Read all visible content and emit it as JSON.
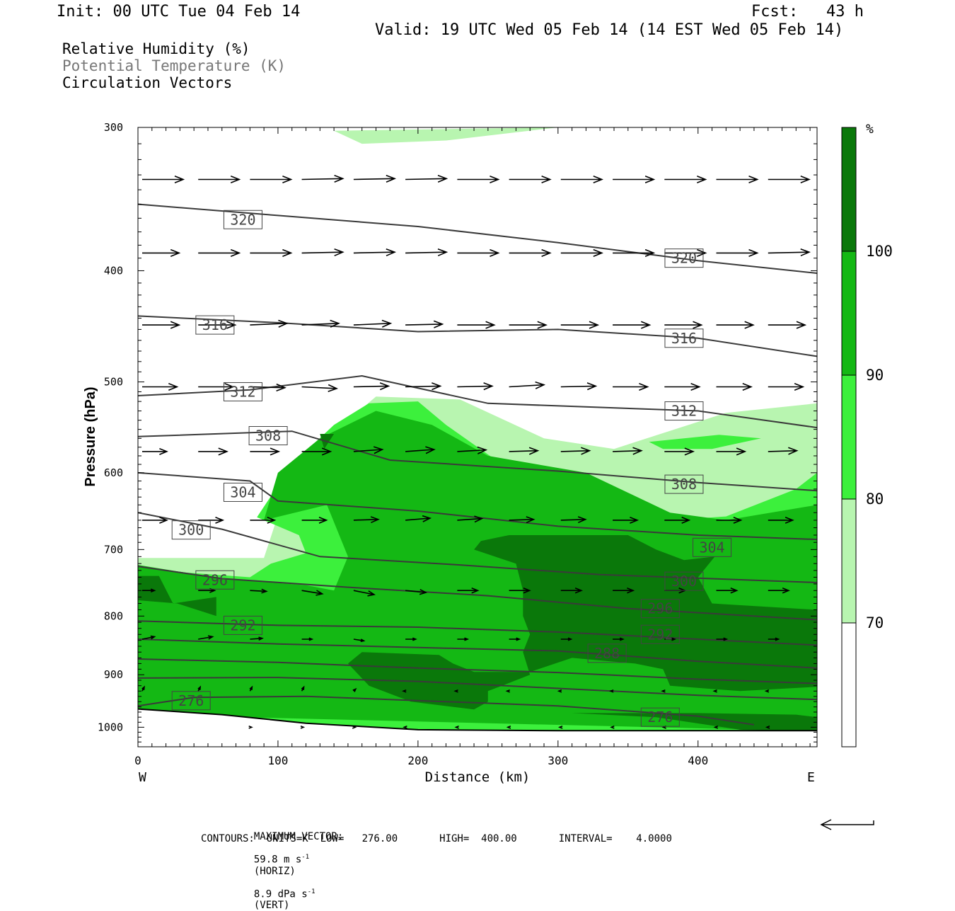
{
  "header": {
    "init": "Init: 00 UTC Tue 04 Feb 14",
    "fcst": "Fcst:   43 h",
    "valid": "Valid: 19 UTC Wed 05 Feb 14 (14 EST Wed 05 Feb 14)"
  },
  "fields": {
    "rh": "Relative Humidity (%)",
    "theta": "Potential Temperature (K)",
    "vectors": "Circulation Vectors"
  },
  "colors": {
    "rh_70_80": "#b8f5b0",
    "rh_80_90": "#3cf03c",
    "rh_90_100": "#14b814",
    "rh_100": "#0a780a",
    "contour": "#3a3a3a",
    "ground": "#ffffff"
  },
  "chart_data": {
    "type": "cross-section",
    "xlabel": "Distance (km)",
    "ylabel": "Pressure (hPa)",
    "xlim": [
      0,
      485
    ],
    "ylim": [
      1040,
      300
    ],
    "y_scale": "log",
    "x_ticks": [
      "0",
      "100",
      "200",
      "300",
      "400"
    ],
    "y_ticks": [
      "300",
      "400",
      "500",
      "600",
      "700",
      "800",
      "900",
      "1000"
    ],
    "x_endpoints": {
      "west": "W",
      "east": "E"
    },
    "colorbar": {
      "unit": "%",
      "levels": [
        "70",
        "80",
        "90",
        "100"
      ],
      "bands": [
        {
          "range": [
            60,
            70
          ],
          "color": "#ffffff"
        },
        {
          "range": [
            70,
            80
          ],
          "color": "#b8f5b0"
        },
        {
          "range": [
            80,
            90
          ],
          "color": "#3cf03c"
        },
        {
          "range": [
            90,
            100
          ],
          "color": "#14b814"
        },
        {
          "range": [
            100,
            110
          ],
          "color": "#0a780a"
        }
      ]
    },
    "theta_contours": [
      {
        "value": 320,
        "points": [
          [
            0,
            350
          ],
          [
            100,
            358
          ],
          [
            200,
            366
          ],
          [
            300,
            378
          ],
          [
            400,
            392
          ],
          [
            485,
            402
          ]
        ]
      },
      {
        "value": 316,
        "points": [
          [
            0,
            438
          ],
          [
            100,
            444
          ],
          [
            200,
            452
          ],
          [
            300,
            450
          ],
          [
            400,
            458
          ],
          [
            485,
            475
          ]
        ]
      },
      {
        "value": 312,
        "points": [
          [
            0,
            514
          ],
          [
            80,
            508
          ],
          [
            160,
            494
          ],
          [
            250,
            522
          ],
          [
            400,
            530
          ],
          [
            485,
            548
          ]
        ]
      },
      {
        "value": 308,
        "points": [
          [
            0,
            558
          ],
          [
            110,
            552
          ],
          [
            180,
            585
          ],
          [
            300,
            598
          ],
          [
            400,
            612
          ],
          [
            485,
            622
          ]
        ]
      },
      {
        "value": 304,
        "points": [
          [
            0,
            600
          ],
          [
            80,
            610
          ],
          [
            100,
            635
          ],
          [
            200,
            648
          ],
          [
            300,
            668
          ],
          [
            400,
            680
          ],
          [
            485,
            686
          ]
        ]
      },
      {
        "value": 300,
        "points": [
          [
            0,
            650
          ],
          [
            60,
            672
          ],
          [
            130,
            710
          ],
          [
            230,
            722
          ],
          [
            330,
            736
          ],
          [
            485,
            748
          ]
        ]
      },
      {
        "value": 296,
        "points": [
          [
            0,
            724
          ],
          [
            60,
            742
          ],
          [
            150,
            755
          ],
          [
            250,
            768
          ],
          [
            350,
            788
          ],
          [
            485,
            806
          ]
        ]
      },
      {
        "value": 292,
        "points": [
          [
            0,
            808
          ],
          [
            100,
            815
          ],
          [
            200,
            818
          ],
          [
            300,
            826
          ],
          [
            400,
            838
          ],
          [
            485,
            848
          ]
        ]
      },
      {
        "value": 288,
        "points": [
          [
            0,
            838
          ],
          [
            100,
            846
          ],
          [
            200,
            852
          ],
          [
            300,
            858
          ],
          [
            400,
            876
          ],
          [
            485,
            888
          ]
        ]
      },
      {
        "value": 284,
        "points": [
          [
            0,
            872
          ],
          [
            100,
            878
          ],
          [
            200,
            888
          ],
          [
            300,
            896
          ],
          [
            400,
            908
          ],
          [
            485,
            916
          ]
        ]
      },
      {
        "value": 280,
        "points": [
          [
            0,
            906
          ],
          [
            100,
            905
          ],
          [
            200,
            912
          ],
          [
            300,
            925
          ],
          [
            400,
            938
          ],
          [
            485,
            946
          ]
        ]
      },
      {
        "value": 276,
        "points": [
          [
            0,
            958
          ],
          [
            40,
            942
          ],
          [
            120,
            940
          ],
          [
            300,
            958
          ],
          [
            400,
            978
          ],
          [
            440,
            995
          ]
        ]
      }
    ],
    "theta_labels": [
      {
        "text": "320",
        "x": 75,
        "p": 361
      },
      {
        "text": "320",
        "x": 390,
        "p": 390
      },
      {
        "text": "316",
        "x": 55,
        "p": 446
      },
      {
        "text": "316",
        "x": 390,
        "p": 458
      },
      {
        "text": "312",
        "x": 75,
        "p": 510
      },
      {
        "text": "312",
        "x": 390,
        "p": 530
      },
      {
        "text": "308",
        "x": 93,
        "p": 557
      },
      {
        "text": "308",
        "x": 390,
        "p": 614
      },
      {
        "text": "304",
        "x": 75,
        "p": 624
      },
      {
        "text": "304",
        "x": 410,
        "p": 697
      },
      {
        "text": "300",
        "x": 38,
        "p": 673
      },
      {
        "text": "300",
        "x": 390,
        "p": 746
      },
      {
        "text": "296",
        "x": 55,
        "p": 744
      },
      {
        "text": "296",
        "x": 373,
        "p": 788
      },
      {
        "text": "292",
        "x": 75,
        "p": 815
      },
      {
        "text": "292",
        "x": 373,
        "p": 830
      },
      {
        "text": "288",
        "x": 335,
        "p": 862
      },
      {
        "text": "276",
        "x": 38,
        "p": 948
      },
      {
        "text": "276",
        "x": 373,
        "p": 980
      }
    ],
    "vectors": [
      {
        "p": 333,
        "x": [
          0,
          40,
          77,
          114,
          151,
          188,
          225,
          262,
          299,
          336,
          373,
          410,
          447
        ],
        "u": [
          1.0,
          1.0,
          1.0,
          1.0,
          1.0,
          1.0,
          1.0,
          1.0,
          1.0,
          1.0,
          1.0,
          1.0,
          1.0
        ],
        "w": [
          0,
          0,
          0,
          0.02,
          0.02,
          0.02,
          0,
          0,
          0,
          0,
          0,
          0,
          0
        ]
      },
      {
        "p": 386,
        "x": [
          0,
          40,
          77,
          114,
          151,
          188,
          225,
          262,
          299,
          336,
          373,
          410,
          447
        ],
        "u": [
          0.9,
          1.0,
          1.0,
          1.0,
          1.0,
          1.0,
          1.0,
          1.0,
          1.0,
          1.0,
          1.0,
          1.0,
          1.0
        ],
        "w": [
          0,
          0,
          0,
          0.02,
          0.02,
          0.02,
          0,
          0,
          0,
          0,
          0,
          0,
          0.02
        ]
      },
      {
        "p": 446,
        "x": [
          0,
          40,
          77,
          114,
          151,
          188,
          225,
          262,
          299,
          336,
          373,
          410,
          447
        ],
        "u": [
          0.9,
          0.9,
          0.9,
          0.9,
          0.9,
          0.9,
          0.9,
          0.9,
          0.9,
          0.9,
          0.9,
          0.9,
          0.9
        ],
        "w": [
          0,
          0,
          0.04,
          0.04,
          0.04,
          0.02,
          0,
          0,
          0,
          0,
          0,
          0,
          0
        ]
      },
      {
        "p": 505,
        "x": [
          0,
          40,
          77,
          114,
          151,
          188,
          225,
          262,
          299,
          336,
          373,
          410,
          447
        ],
        "u": [
          0.85,
          0.85,
          0.85,
          0.85,
          0.85,
          0.85,
          0.85,
          0.85,
          0.85,
          0.85,
          0.85,
          0.85,
          0.85
        ],
        "w": [
          0,
          0,
          -0.02,
          -0.04,
          0.02,
          0.02,
          0.02,
          0.05,
          0.02,
          0,
          0,
          0,
          0
        ]
      },
      {
        "p": 575,
        "x": [
          0,
          40,
          77,
          114,
          151,
          188,
          225,
          262,
          299,
          336,
          373,
          410,
          447
        ],
        "u": [
          0.6,
          0.7,
          0.7,
          0.7,
          0.7,
          0.7,
          0.7,
          0.7,
          0.7,
          0.7,
          0.7,
          0.7,
          0.7
        ],
        "w": [
          0,
          0,
          0,
          0,
          0.05,
          0.05,
          0.04,
          0.02,
          0.02,
          0.02,
          0,
          0,
          0.02
        ]
      },
      {
        "p": 660,
        "x": [
          0,
          40,
          77,
          114,
          151,
          188,
          225,
          262,
          299,
          336,
          373,
          410,
          447
        ],
        "u": [
          0.6,
          0.6,
          0.6,
          0.6,
          0.6,
          0.6,
          0.6,
          0.6,
          0.6,
          0.6,
          0.6,
          0.6,
          0.6
        ],
        "w": [
          0,
          0,
          0,
          0,
          0.02,
          0.05,
          0.04,
          0.02,
          0.02,
          0,
          0,
          0,
          0
        ]
      },
      {
        "p": 760,
        "x": [
          0,
          40,
          77,
          114,
          151,
          188,
          225,
          262,
          299,
          336,
          373,
          410,
          447
        ],
        "u": [
          0.3,
          0.4,
          0.4,
          0.5,
          0.5,
          0.5,
          0.5,
          0.5,
          0.5,
          0.5,
          0.5,
          0.5,
          0.5
        ],
        "w": [
          0,
          0,
          -0.02,
          -0.08,
          -0.1,
          -0.05,
          0,
          0,
          0,
          0,
          0,
          0,
          0
        ]
      },
      {
        "p": 838,
        "x": [
          0,
          40,
          77,
          114,
          151,
          188,
          225,
          262,
          299,
          336,
          373,
          410,
          447
        ],
        "u": [
          0.3,
          0.35,
          0.3,
          0.25,
          0.25,
          0.25,
          0.25,
          0.25,
          0.25,
          0.25,
          0.25,
          0.25,
          0.25
        ],
        "w": [
          0.06,
          0.06,
          0.02,
          0,
          -0.04,
          0,
          0,
          0,
          0,
          0,
          0,
          0,
          0
        ]
      },
      {
        "p": 930,
        "x": [
          0,
          40,
          77,
          114,
          151,
          188,
          225,
          262,
          299,
          336,
          373,
          410,
          447
        ],
        "u": [
          0.05,
          0.05,
          0.05,
          0.05,
          0.05,
          -0.05,
          -0.05,
          -0.05,
          -0.05,
          -0.05,
          -0.05,
          -0.05,
          -0.05
        ],
        "w": [
          0.1,
          0.1,
          0.1,
          0.1,
          0.05,
          0,
          0,
          0,
          0,
          0,
          0,
          0,
          0
        ]
      },
      {
        "p": 1000,
        "x": [
          77,
          114,
          151,
          188,
          225,
          262,
          299,
          336,
          373,
          410,
          447
        ],
        "u": [
          0.04,
          0.04,
          0.04,
          -0.03,
          -0.03,
          -0.03,
          -0.03,
          -0.03,
          -0.03,
          -0.03,
          -0.03
        ],
        "w": [
          0,
          0,
          0,
          0,
          0,
          0,
          0,
          0,
          0,
          0,
          0
        ]
      }
    ]
  },
  "footer": {
    "max_vector_label": "MAXIMUM VECTOR:",
    "max_vector_horiz": "59.8 m s",
    "max_vector_horiz_exp": "-1",
    "max_vector_horiz_tag": "(HORIZ)",
    "max_vector_vert": "8.9 dPa s",
    "max_vector_vert_exp": "-1",
    "max_vector_vert_tag": "(VERT)",
    "contours": "CONTOURS:  UNITS=K  LOW=   276.00       HIGH=  400.00       INTERVAL=    4.0000"
  }
}
